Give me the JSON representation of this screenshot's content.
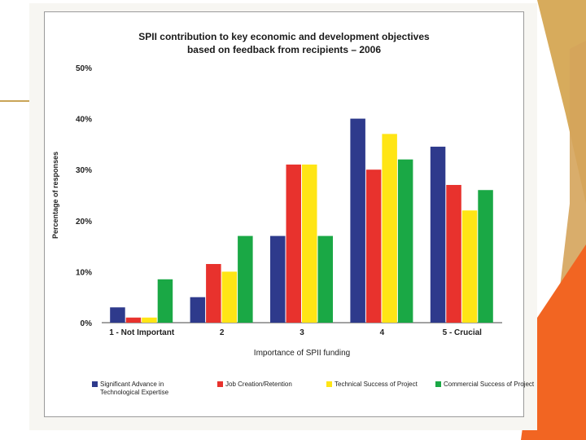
{
  "chart_data": {
    "type": "bar",
    "title": [
      "SPII contribution to key economic and development objectives",
      "based on feedback from recipients – 2006"
    ],
    "xlabel": "Importance of SPII funding",
    "ylabel": "Percentage of responses",
    "categories": [
      "1 - Not Important",
      "2",
      "3",
      "4",
      "5 - Crucial"
    ],
    "ylim": [
      0,
      50
    ],
    "yticks": [
      "0%",
      "10%",
      "20%",
      "30%",
      "40%",
      "50%"
    ],
    "ytick_values": [
      0,
      10,
      20,
      30,
      40,
      50
    ],
    "legend_position": "bottom",
    "grid": false,
    "series": [
      {
        "name": "Significant Advance in Technological Expertise",
        "color": "#2e3a8c",
        "values": [
          3,
          5,
          17,
          40,
          34.5
        ]
      },
      {
        "name": "Job Creation/Retention",
        "color": "#e8322d",
        "values": [
          1,
          11.5,
          31,
          30,
          27
        ]
      },
      {
        "name": "Technical Success of Project",
        "color": "#ffe515",
        "values": [
          1,
          10,
          31,
          37,
          22
        ]
      },
      {
        "name": "Commercial Success of Project",
        "color": "#1aa845",
        "values": [
          8.5,
          17,
          17,
          32,
          26
        ]
      }
    ]
  }
}
